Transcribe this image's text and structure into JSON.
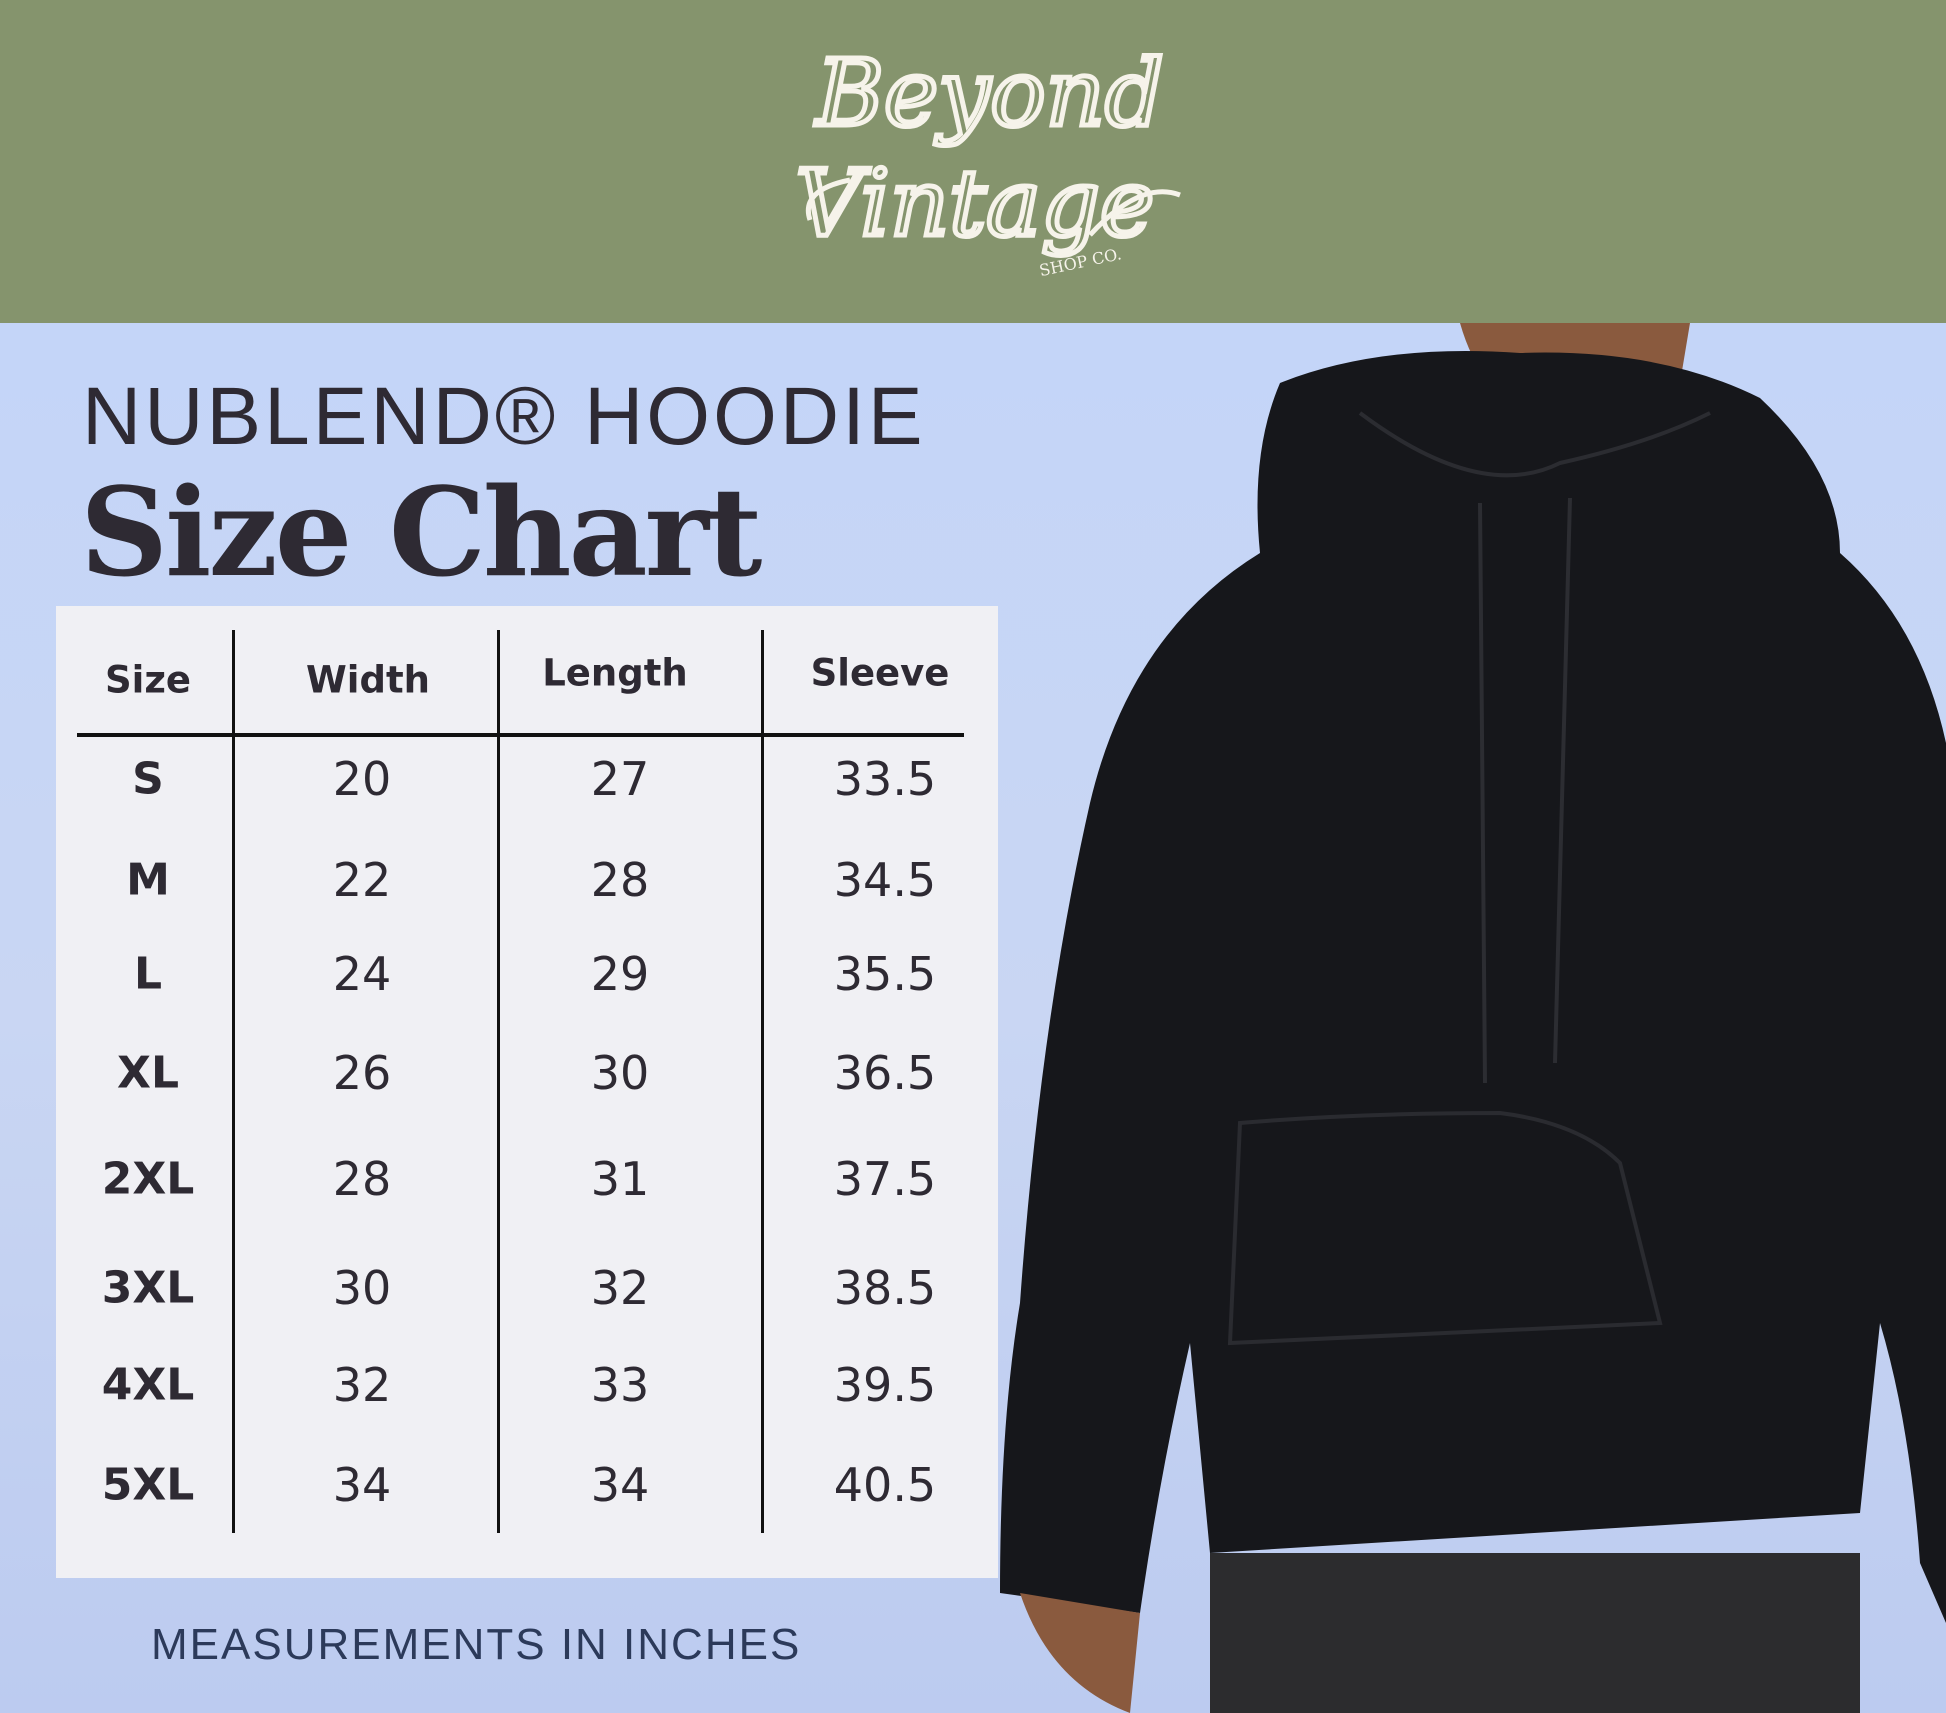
{
  "brand": {
    "logo_text": "Beyond Vintage",
    "logo_subtext": "SHOP CO."
  },
  "title": {
    "line1": "NUBLEND® HOODIE",
    "line2": "Size Chart"
  },
  "table": {
    "headers": [
      "Size",
      "Width",
      "Length",
      "Sleeve"
    ],
    "rows": [
      [
        "S",
        "20",
        "27",
        "33.5"
      ],
      [
        "M",
        "22",
        "28",
        "34.5"
      ],
      [
        "L",
        "24",
        "29",
        "35.5"
      ],
      [
        "XL",
        "26",
        "30",
        "36.5"
      ],
      [
        "2XL",
        "28",
        "31",
        "37.5"
      ],
      [
        "3XL",
        "30",
        "32",
        "38.5"
      ],
      [
        "4XL",
        "32",
        "33",
        "39.5"
      ],
      [
        "5XL",
        "34",
        "34",
        "40.5"
      ]
    ]
  },
  "footer": {
    "note": "MEASUREMENTS IN INCHES"
  },
  "colors": {
    "header_bg": "#85946d",
    "page_bg": "#c5d4f5",
    "text": "#2e2a33",
    "card": "#f0f0f4"
  }
}
